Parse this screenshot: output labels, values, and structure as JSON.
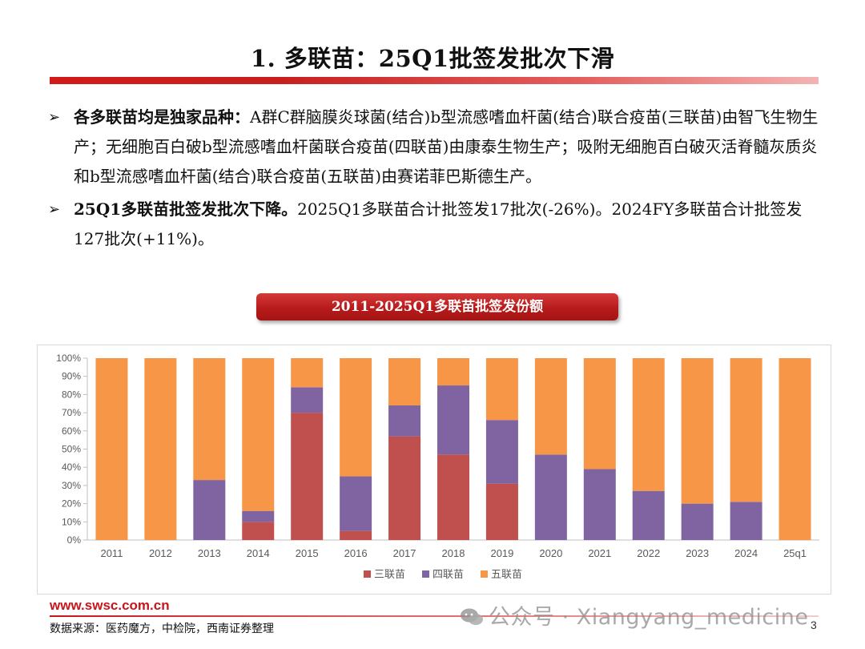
{
  "header": {
    "title": "1. 多联苗：25Q1批签发批次下滑"
  },
  "bullets": [
    {
      "arrow": "➢",
      "lead": "各多联苗均是独家品种：",
      "text": "A群C群脑膜炎球菌(结合)b型流感嗜血杆菌(结合)联合疫苗(三联苗)由智飞生物生产；无细胞百白破b型流感嗜血杆菌联合疫苗(四联苗)由康泰生物生产；吸附无细胞百白破灭活脊髓灰质炎和b型流感嗜血杆菌(结合)联合疫苗(五联苗)由赛诺菲巴斯德生产。"
    },
    {
      "arrow": "➢",
      "lead": "25Q1多联苗批签发批次下降。",
      "text": "2025Q1多联苗合计批签发17批次(-26%)。2024FY多联苗合计批签发127批次(+11%)。"
    }
  ],
  "banner": {
    "label": "2011-2025Q1多联苗批签发份额"
  },
  "chart_data": {
    "type": "bar",
    "stacked": true,
    "percent": true,
    "categories": [
      "2011",
      "2012",
      "2013",
      "2014",
      "2015",
      "2016",
      "2017",
      "2018",
      "2019",
      "2020",
      "2021",
      "2022",
      "2023",
      "2024",
      "25q1"
    ],
    "series": [
      {
        "name": "三联苗",
        "color": "#c0504d",
        "values": [
          0,
          0,
          0,
          10,
          70,
          5,
          57,
          47,
          31,
          0,
          0,
          0,
          0,
          0,
          0
        ]
      },
      {
        "name": "四联苗",
        "color": "#8064a2",
        "values": [
          0,
          0,
          33,
          6,
          14,
          30,
          17,
          38,
          35,
          47,
          39,
          27,
          20,
          21,
          0
        ]
      },
      {
        "name": "五联苗",
        "color": "#f79646",
        "values": [
          100,
          100,
          67,
          84,
          16,
          65,
          26,
          15,
          34,
          53,
          61,
          73,
          80,
          79,
          100
        ]
      }
    ],
    "yticks": [
      "0%",
      "10%",
      "20%",
      "30%",
      "40%",
      "50%",
      "60%",
      "70%",
      "80%",
      "90%",
      "100%"
    ],
    "ylim": [
      0,
      100
    ],
    "grid": false,
    "legend": "bottom"
  },
  "footer": {
    "url": "www.swsc.com.cn",
    "source": "数据来源：医药魔方，中检院，西南证券整理",
    "page": "3",
    "watermark": "公众号 · Xiangyang_medicine"
  }
}
